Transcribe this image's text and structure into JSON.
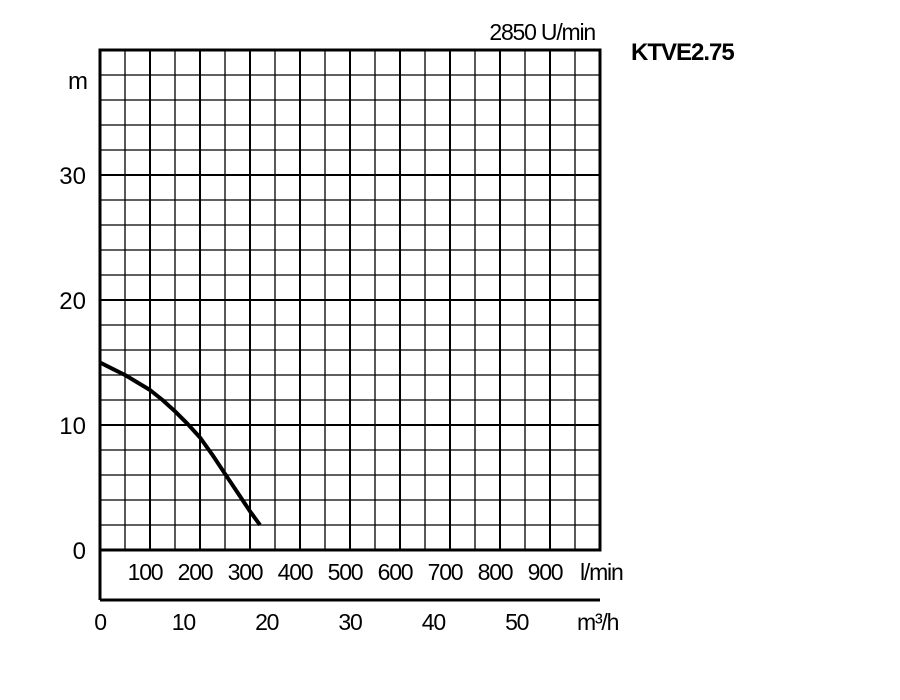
{
  "chart_data": {
    "type": "line",
    "model": "KTVE2.75",
    "speed_label": "2850 U/min",
    "ylabel": "m",
    "xlabel_lmin": "l/min",
    "xlabel_m3h": "m³/h",
    "ylim": [
      0,
      40
    ],
    "xlim_lmin": [
      0,
      1000
    ],
    "xlim_m3h": [
      0,
      60
    ],
    "grid": true,
    "y_ticks": [
      "0",
      "10",
      "20",
      "30"
    ],
    "x_ticks_lmin": [
      "100",
      "200",
      "300",
      "400",
      "500",
      "600",
      "700",
      "800",
      "900"
    ],
    "x_ticks_m3h": [
      "0",
      "10",
      "20",
      "30",
      "40",
      "50"
    ],
    "series": [
      {
        "x_lmin": [
          0,
          25,
          50,
          75,
          100,
          125,
          150,
          175,
          200,
          225,
          250,
          275,
          300,
          320
        ],
        "y": [
          15,
          14.5,
          14.0,
          13.4,
          12.8,
          12.0,
          11.1,
          10.1,
          9.0,
          7.6,
          6.1,
          4.6,
          3.1,
          2.0
        ]
      }
    ],
    "line_color": "#000000"
  }
}
